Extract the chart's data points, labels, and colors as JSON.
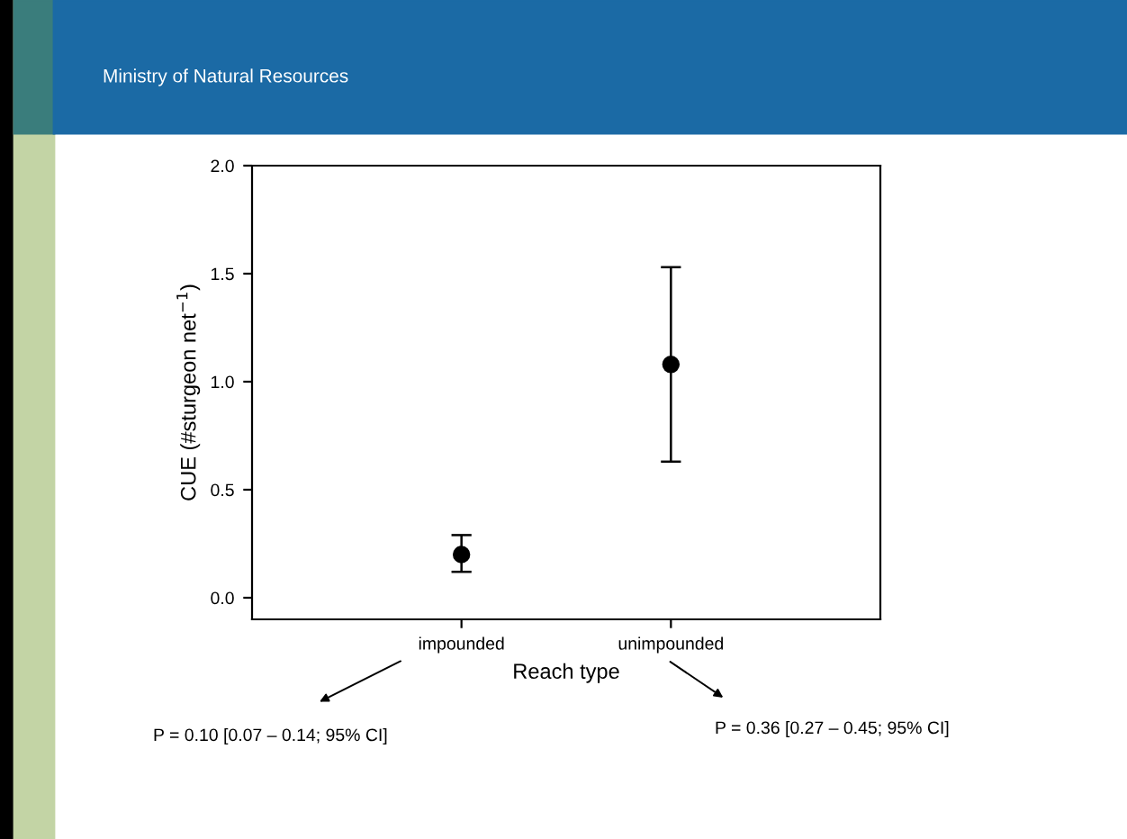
{
  "chart_data": {
    "type": "scatter",
    "xlabel": "Reach type",
    "ylabel": "CUE (#sturgeon net$^{−1}$)",
    "categories": [
      "impounded",
      "unimpounded"
    ],
    "series": [
      {
        "color": "#000000",
        "values": [
          0.2,
          1.08
        ],
        "errors": [
          [
            0.12,
            0.29
          ],
          [
            0.63,
            1.53
          ]
        ]
      }
    ],
    "marker": "circle",
    "ylim": [
      -0.1,
      2.0
    ],
    "yticks": [
      {
        "value": 0,
        "label": "0.0"
      },
      0.5,
      {
        "value": 1,
        "label": "1.0"
      },
      1.5,
      {
        "value": 2,
        "label": "2.0"
      }
    ],
    "grid": false,
    "legend": false,
    "annotations": [
      "Ministry of Natural Resources",
      "P = 0.10 [0.07 – 0.14; 95% CI]",
      "P = 0.36 [0.27 – 0.45; 95% CI]"
    ]
  }
}
